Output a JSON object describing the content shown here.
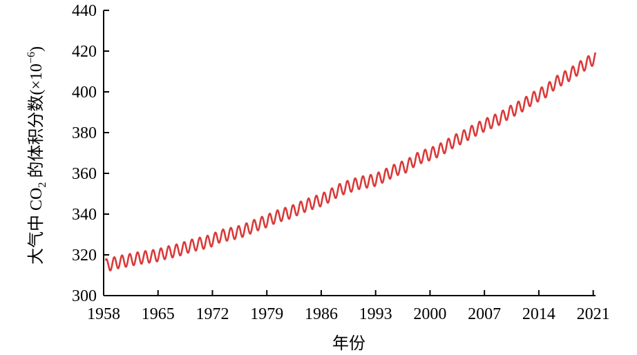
{
  "chart_data": {
    "type": "line",
    "title": "",
    "xlabel": "年份",
    "ylabel_main": "大气中 CO",
    "ylabel_sub": "2",
    "ylabel_rest": " 的体积分数(×10",
    "ylabel_sup": "−6",
    "ylabel_close": ")",
    "xlim": [
      1958,
      2021.3
    ],
    "ylim": [
      300,
      440
    ],
    "x_ticks": [
      1958,
      1965,
      1972,
      1979,
      1986,
      1993,
      2000,
      2007,
      2014,
      2021
    ],
    "x_tick_labels": [
      "1958",
      "1965",
      "1972",
      "1979",
      "1986",
      "1993",
      "2000",
      "2007",
      "2014",
      "2021"
    ],
    "y_ticks": [
      300,
      320,
      340,
      360,
      380,
      400,
      420,
      440
    ],
    "y_tick_labels": [
      "300",
      "320",
      "340",
      "360",
      "380",
      "400",
      "420",
      "440"
    ],
    "grid": false,
    "legend": "none",
    "line_color": "#d93a3a",
    "series": [
      {
        "x": [
          1958.0,
          1958.5,
          1959.0,
          1960.0,
          1961.0,
          1962.0,
          1963.0,
          1964.0,
          1965.0,
          1966.0,
          1967.0,
          1968.0,
          1969.0,
          1970.0,
          1971.0,
          1972.0,
          1973.0,
          1974.0,
          1975.0,
          1976.0,
          1977.0,
          1978.0,
          1979.0,
          1980.0,
          1981.0,
          1982.0,
          1983.0,
          1984.0,
          1985.0,
          1986.0,
          1987.0,
          1988.0,
          1989.0,
          1990.0,
          1991.0,
          1992.0,
          1993.0,
          1994.0,
          1995.0,
          1996.0,
          1997.0,
          1998.0,
          1999.0,
          2000.0,
          2001.0,
          2002.0,
          2003.0,
          2004.0,
          2005.0,
          2006.0,
          2007.0,
          2008.0,
          2009.0,
          2010.0,
          2011.0,
          2012.0,
          2013.0,
          2014.0,
          2015.0,
          2016.0,
          2017.0,
          2018.0,
          2019.0,
          2020.0,
          2021.0
        ],
        "values": [
          315.2,
          314.8,
          315.5,
          316.5,
          317.2,
          318.0,
          318.7,
          319.2,
          319.8,
          321.0,
          321.8,
          322.8,
          324.2,
          325.2,
          326.0,
          327.2,
          329.2,
          330.0,
          330.8,
          331.9,
          333.6,
          335.2,
          336.6,
          338.4,
          339.7,
          340.8,
          342.6,
          344.2,
          345.6,
          346.9,
          348.8,
          351.2,
          352.9,
          354.1,
          355.4,
          356.0,
          356.8,
          358.6,
          360.6,
          362.4,
          363.5,
          366.4,
          368.2,
          369.4,
          371.0,
          373.1,
          375.6,
          377.4,
          379.6,
          381.7,
          383.6,
          385.3,
          386.9,
          389.5,
          391.5,
          393.6,
          396.3,
          398.5,
          400.5,
          404.1,
          406.4,
          408.5,
          411.2,
          413.7,
          416.0
        ],
        "seasonal_amplitude": 3.0
      }
    ]
  }
}
